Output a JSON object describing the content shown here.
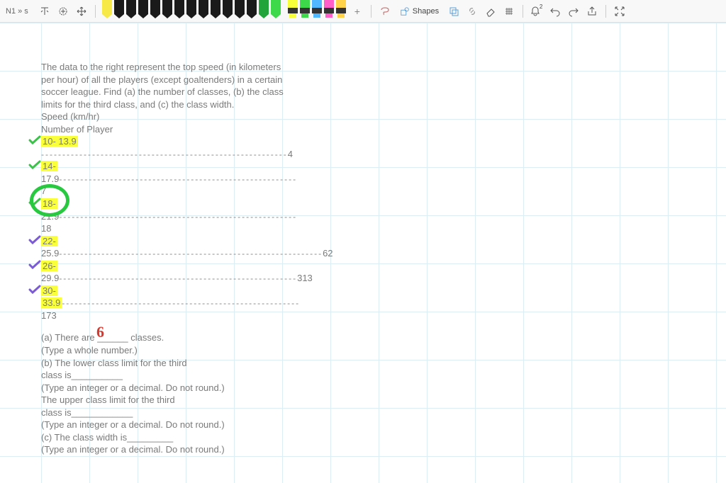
{
  "toolbar": {
    "page_label": "N1 » s",
    "pens": [
      {
        "color": "#f7e948"
      },
      {
        "color": "#1a1a1a"
      },
      {
        "color": "#1a1a1a"
      },
      {
        "color": "#1a1a1a"
      },
      {
        "color": "#1a1a1a"
      },
      {
        "color": "#1a1a1a"
      },
      {
        "color": "#1a1a1a"
      },
      {
        "color": "#1a1a1a"
      },
      {
        "color": "#1a1a1a"
      },
      {
        "color": "#1a1a1a"
      },
      {
        "color": "#1a1a1a"
      },
      {
        "color": "#1a1a1a"
      },
      {
        "color": "#1a1a1a"
      },
      {
        "color": "#21a53a"
      },
      {
        "color": "#3dd94a"
      }
    ],
    "highlighters": [
      {
        "color": "#f7ff3a"
      },
      {
        "color": "#3dd94a"
      },
      {
        "color": "#4fb8ff"
      },
      {
        "color": "#ff5fc8"
      },
      {
        "color": "#ffd24a"
      }
    ],
    "shapes_label": "Shapes",
    "bell_badge": "2"
  },
  "problem": {
    "p1": "The data to the right represent the top speed (in kilometers",
    "p2": "per hour) of all the players (except goaltenders) in a certain",
    "p3": "soccer league. Find (a) the number of classes, (b) the class",
    "p4": "limits for the third class, and (c) the class width.",
    "h1": "Speed (km/hr)",
    "h2": "Number of Player",
    "classes": [
      {
        "label": "10- 13.9",
        "value": "4",
        "check": "#3cc24a"
      },
      {
        "low": "14-",
        "high": "17.9",
        "value": "7",
        "check": "#3cc24a",
        "hl_low": true
      },
      {
        "low": "18-",
        "high": "21.9",
        "value": "18",
        "check": "#3cc24a",
        "hl_low": true,
        "circled": true
      },
      {
        "low": "22-",
        "high": "25.9",
        "value": "62",
        "check": "#7b5bd6",
        "hl_low": true
      },
      {
        "low": "26-",
        "high": "29.9",
        "value": "313",
        "check": "#7b5bd6",
        "hl_low": true
      },
      {
        "low": "30-",
        "high": "33.9",
        "value": "173",
        "check": "#7b5bd6",
        "hl_low": true,
        "hl_high": true
      }
    ],
    "qa": {
      "a_pre": "(a) There are ",
      "a_blank": "______",
      "a_post": "classes.",
      "a_note": "(Type a whole number.)",
      "b1": "(b) The lower class limit for the third",
      "b2": "class is__________",
      "b_note": "(Type an integer or a decimal. Do not round.)",
      "b3": "The upper class limit for the third",
      "b4": "class is____________",
      "b_note2": "(Type an integer or a decimal. Do not round.)",
      "c1": "(c) The class width is_________",
      "c_note": "(Type an integer or a decimal. Do not round.)"
    },
    "handwritten_answer": "6"
  },
  "colors": {
    "check_green": "#3cc24a",
    "check_purple": "#7b5bd6",
    "circle": "#28c840",
    "highlight": "#faff3b",
    "handwriting": "#d43a2f"
  }
}
